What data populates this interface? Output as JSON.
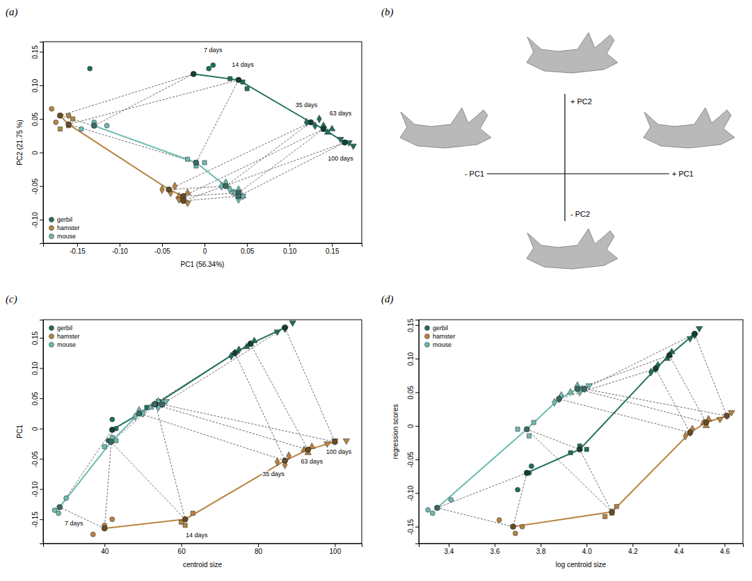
{
  "chart_data": [
    {
      "type": "scatter",
      "title": "(a)",
      "xlabel": "PC1 (56.34%)",
      "ylabel": "PC2 (21.75 %)",
      "xlim": [
        -0.19,
        0.185
      ],
      "xticks": [
        -0.15,
        {
          "value": -0.1,
          "label": "-0.10"
        },
        -0.05,
        0,
        0.05,
        {
          "value": 0.1,
          "label": "0.10"
        },
        0.15
      ],
      "ylim": [
        -0.135,
        0.165
      ],
      "yticks": [
        {
          "value": -0.1,
          "label": "-0.10"
        },
        -0.05,
        0,
        0.05,
        {
          "value": 0.1,
          "label": "0.10"
        },
        0.15
      ],
      "legend": "lower left",
      "series": [
        {
          "name": "gerbil",
          "color": "#1e6f5c",
          "age": [
            7,
            7,
            7,
            14,
            14,
            14,
            35,
            35,
            35,
            63,
            63,
            63,
            100,
            100,
            100
          ],
          "x": [
            -0.135,
            0.005,
            0.01,
            0.03,
            0.045,
            0.05,
            0.12,
            0.13,
            0.135,
            0.14,
            0.145,
            0.15,
            0.16,
            0.17,
            0.175
          ],
          "values": [
            0.125,
            0.125,
            0.13,
            0.11,
            0.105,
            0.095,
            0.045,
            0.04,
            0.05,
            0.04,
            0.03,
            0.035,
            0.02,
            0.015,
            0.01
          ],
          "mean_x": [
            -0.013,
            0.04,
            0.125,
            0.14,
            0.165
          ],
          "mean_values": [
            0.117,
            0.108,
            0.045,
            0.035,
            0.015
          ]
        },
        {
          "name": "hamster",
          "color": "#b7843f",
          "age": [
            7,
            7,
            7,
            14,
            14,
            14,
            35,
            35,
            35,
            63,
            63,
            63,
            100,
            100,
            100
          ],
          "x": [
            -0.18,
            -0.175,
            -0.16,
            -0.17,
            -0.155,
            -0.16,
            -0.05,
            -0.04,
            -0.035,
            -0.03,
            -0.025,
            -0.02,
            -0.03,
            -0.02,
            -0.025
          ],
          "values": [
            0.065,
            0.045,
            0.055,
            0.035,
            0.05,
            0.04,
            -0.055,
            -0.06,
            -0.05,
            -0.065,
            -0.07,
            -0.06,
            -0.07,
            -0.075,
            -0.07
          ],
          "mean_x": [
            -0.17,
            -0.16,
            -0.042,
            -0.025,
            -0.025
          ],
          "mean_values": [
            0.055,
            0.042,
            -0.055,
            -0.065,
            -0.072
          ]
        },
        {
          "name": "mouse",
          "color": "#6cbab1",
          "age": [
            7,
            7,
            7,
            14,
            14,
            14,
            35,
            35,
            35,
            63,
            63,
            63,
            100,
            100,
            100
          ],
          "x": [
            -0.145,
            -0.13,
            -0.115,
            -0.02,
            -0.01,
            0,
            0.02,
            0.03,
            0.025,
            0.035,
            0.04,
            0.045,
            0.04,
            0.045,
            0.035
          ],
          "values": [
            0.035,
            0.045,
            0.04,
            -0.01,
            -0.02,
            -0.015,
            -0.05,
            -0.055,
            -0.045,
            -0.06,
            -0.055,
            -0.065,
            -0.07,
            -0.065,
            -0.06
          ],
          "mean_x": [
            -0.13,
            -0.01,
            0.025,
            0.04,
            0.04
          ],
          "mean_values": [
            0.04,
            -0.015,
            -0.05,
            -0.06,
            -0.065
          ]
        }
      ],
      "annotations": [
        {
          "text": "7 days",
          "x": 0.01,
          "y": 0.15
        },
        {
          "text": "14 days",
          "x": 0.045,
          "y": 0.128
        },
        {
          "text": "35 days",
          "x": 0.12,
          "y": 0.068
        },
        {
          "text": "63 days",
          "x": 0.16,
          "y": 0.055
        },
        {
          "text": "100 days",
          "x": 0.16,
          "y": -0.012
        }
      ]
    },
    {
      "type": "diagram",
      "title": "(b)",
      "annotations": [
        "+ PC2",
        "- PC1",
        "+ PC1",
        "- PC2"
      ]
    },
    {
      "type": "scatter",
      "title": "(c)",
      "xlabel": "centroid size",
      "ylabel": "PC1",
      "xlim": [
        24,
        107
      ],
      "xticks": [
        40,
        60,
        80,
        100
      ],
      "ylim": [
        -0.19,
        0.18
      ],
      "yticks": [
        -0.15,
        {
          "value": -0.1,
          "label": "-0.10"
        },
        -0.05,
        0,
        0.05,
        {
          "value": 0.1,
          "label": "0.10"
        },
        0.15
      ],
      "legend": "upper left",
      "series": [
        {
          "name": "gerbil",
          "color": "#1e6f5c",
          "age": [
            7,
            7,
            7,
            14,
            14,
            14,
            35,
            35,
            35,
            63,
            63,
            63,
            100,
            100,
            100
          ],
          "x": [
            41,
            43,
            42,
            51,
            54,
            55,
            73,
            75,
            74,
            77,
            79,
            78,
            85,
            87,
            89
          ],
          "values": [
            -0.02,
            0,
            0.015,
            0.035,
            0.045,
            0.04,
            0.12,
            0.13,
            0.125,
            0.135,
            0.145,
            0.14,
            0.16,
            0.165,
            0.175
          ],
          "mean_x": [
            42,
            53.3,
            74,
            78,
            87
          ],
          "mean_values": [
            -0.002,
            0.04,
            0.125,
            0.14,
            0.167
          ]
        },
        {
          "name": "hamster",
          "color": "#b7843f",
          "age": [
            7,
            7,
            7,
            14,
            14,
            14,
            35,
            35,
            35,
            63,
            63,
            63,
            100,
            100,
            100
          ],
          "x": [
            37,
            40,
            42,
            60,
            63,
            61,
            85,
            88,
            87,
            92,
            94,
            93,
            98,
            100,
            103
          ],
          "values": [
            -0.175,
            -0.16,
            -0.15,
            -0.155,
            -0.14,
            -0.16,
            -0.055,
            -0.045,
            -0.06,
            -0.035,
            -0.03,
            -0.04,
            -0.025,
            -0.02,
            -0.02
          ],
          "mean_x": [
            40,
            61,
            87,
            93,
            100
          ],
          "mean_values": [
            -0.165,
            -0.15,
            -0.053,
            -0.035,
            -0.022
          ]
        },
        {
          "name": "mouse",
          "color": "#6cbab1",
          "age": [
            7,
            7,
            7,
            14,
            14,
            14,
            35,
            35,
            35,
            63,
            63,
            63,
            100,
            100,
            100
          ],
          "x": [
            27,
            28,
            30,
            40,
            42,
            43,
            48,
            49,
            50,
            52,
            53,
            54,
            54,
            55,
            56
          ],
          "values": [
            -0.135,
            -0.14,
            -0.115,
            -0.03,
            -0.015,
            -0.02,
            0.02,
            0.03,
            0.025,
            0.035,
            0.04,
            0.045,
            0.035,
            0.04,
            0.045
          ],
          "mean_x": [
            28.3,
            41.7,
            49,
            53,
            55
          ],
          "mean_values": [
            -0.13,
            -0.022,
            0.025,
            0.04,
            0.04
          ]
        }
      ],
      "annotations": [
        {
          "text": "7 days",
          "x": 32,
          "y": -0.16
        },
        {
          "text": "14 days",
          "x": 64,
          "y": -0.18
        },
        {
          "text": "35 days",
          "x": 84,
          "y": -0.078
        },
        {
          "text": "63 days",
          "x": 94,
          "y": -0.058
        },
        {
          "text": "100 days",
          "x": 101,
          "y": -0.042
        }
      ]
    },
    {
      "type": "scatter",
      "title": "(d)",
      "xlabel": "log centroid size",
      "ylabel": "regression scores",
      "xlim": [
        3.27,
        4.68
      ],
      "xticks": [
        3.4,
        3.6,
        3.8,
        {
          "value": 4,
          "label": "4.0"
        },
        4.2,
        4.4,
        4.6
      ],
      "ylim": [
        -0.175,
        0.158
      ],
      "yticks": [
        -0.15,
        {
          "value": -0.1,
          "label": "-0.10"
        },
        -0.05,
        0,
        0.05,
        {
          "value": 0.1,
          "label": "0.10"
        },
        0.15
      ],
      "legend": "upper left",
      "series": [
        {
          "name": "gerbil",
          "color": "#1e6f5c",
          "age": [
            7,
            7,
            7,
            14,
            14,
            14,
            35,
            35,
            35,
            63,
            63,
            63,
            100,
            100,
            100
          ],
          "x": [
            3.7,
            3.76,
            3.75,
            3.93,
            3.97,
            4.0,
            4.28,
            4.31,
            4.3,
            4.35,
            4.37,
            4.36,
            4.45,
            4.47,
            4.49
          ],
          "values": [
            -0.095,
            -0.06,
            -0.07,
            -0.04,
            -0.03,
            -0.035,
            0.08,
            0.09,
            0.085,
            0.1,
            0.11,
            0.105,
            0.13,
            0.135,
            0.145
          ],
          "mean_x": [
            3.74,
            3.97,
            4.3,
            4.36,
            4.47
          ],
          "mean_values": [
            -0.07,
            -0.035,
            0.085,
            0.105,
            0.137
          ]
        },
        {
          "name": "hamster",
          "color": "#b7843f",
          "age": [
            7,
            7,
            7,
            14,
            14,
            14,
            35,
            35,
            35,
            63,
            63,
            63,
            100,
            100,
            100
          ],
          "x": [
            3.62,
            3.69,
            3.72,
            4.08,
            4.13,
            4.11,
            4.43,
            4.46,
            4.45,
            4.52,
            4.53,
            4.51,
            4.58,
            4.61,
            4.63
          ],
          "values": [
            -0.14,
            -0.16,
            -0.15,
            -0.135,
            -0.12,
            -0.13,
            -0.015,
            -0.005,
            -0.01,
            0,
            0.01,
            0.005,
            0.01,
            0.015,
            0.02
          ],
          "mean_x": [
            3.68,
            4.11,
            4.45,
            4.52,
            4.61
          ],
          "mean_values": [
            -0.15,
            -0.128,
            -0.01,
            0.005,
            0.015
          ]
        },
        {
          "name": "mouse",
          "color": "#6cbab1",
          "age": [
            7,
            7,
            7,
            14,
            14,
            14,
            35,
            35,
            35,
            63,
            63,
            63,
            100,
            100,
            100
          ],
          "x": [
            3.31,
            3.33,
            3.41,
            3.7,
            3.75,
            3.77,
            3.86,
            3.89,
            3.88,
            3.93,
            3.96,
            3.98,
            3.97,
            3.99,
            4.01
          ],
          "values": [
            -0.125,
            -0.13,
            -0.11,
            -0.005,
            -0.015,
            0.005,
            0.035,
            0.045,
            0.04,
            0.05,
            0.06,
            0.055,
            0.05,
            0.055,
            0.06
          ],
          "mean_x": [
            3.35,
            3.74,
            3.88,
            3.96,
            3.99
          ],
          "mean_values": [
            -0.122,
            -0.005,
            0.04,
            0.055,
            0.055
          ]
        }
      ]
    }
  ]
}
